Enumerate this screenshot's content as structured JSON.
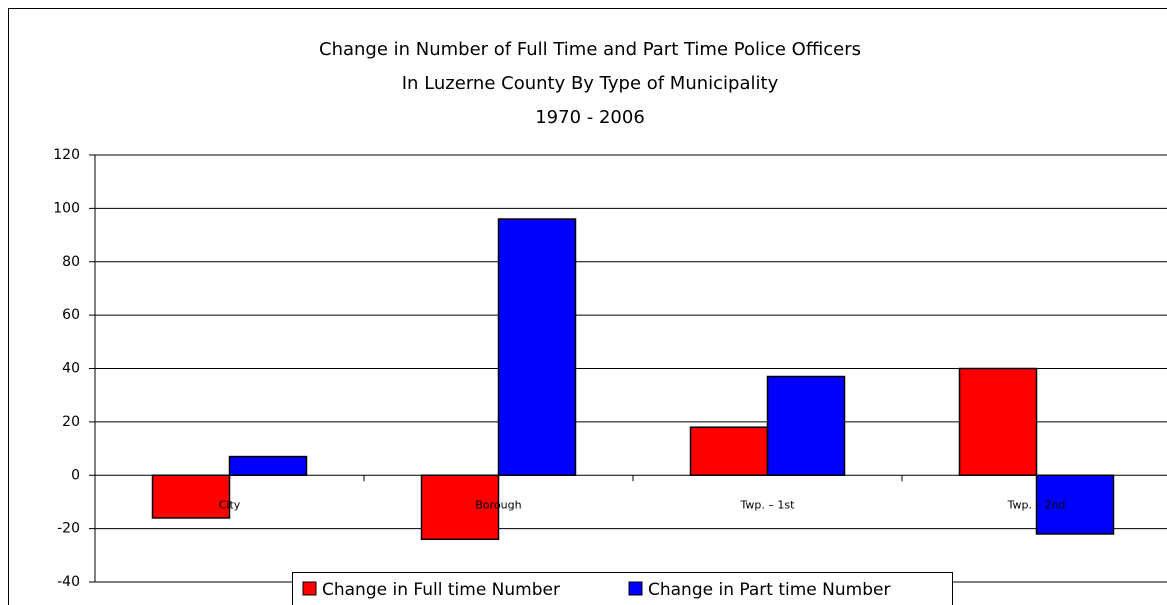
{
  "chart_data": {
    "type": "bar",
    "title": [
      "Change in Number  of Full Time and Part Time Police Officers",
      "In Luzerne County By Type of Municipality",
      "1970 - 2006"
    ],
    "categories": [
      "City",
      "Borough",
      "Twp. – 1st",
      "Twp. – 2nd"
    ],
    "series": [
      {
        "name": "Change in Full time Number",
        "color": "#ff0000",
        "values": [
          -16,
          -24,
          18,
          40
        ]
      },
      {
        "name": "Change in Part time Number",
        "color": "#0000ff",
        "values": [
          7,
          96,
          37,
          -22
        ]
      }
    ],
    "ylim": [
      -40,
      120
    ],
    "yticks": [
      -40,
      -20,
      0,
      20,
      40,
      60,
      80,
      100,
      120
    ],
    "grid": true,
    "legend": "bottom"
  }
}
